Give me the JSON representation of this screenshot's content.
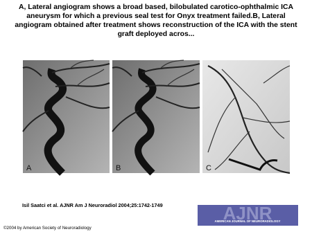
{
  "header": {
    "title": "A, Lateral angiogram shows a broad based, bilobulated carotico-ophthalmic ICA aneurysm for which a previous seal test for Onyx treatment failed.B, Lateral angiogram obtained after treatment shows reconstruction of the ICA with the stent graft deployed acros..."
  },
  "figure": {
    "panels": [
      {
        "label": "A"
      },
      {
        "label": "B"
      },
      {
        "label": "C"
      }
    ]
  },
  "footer": {
    "citation": "Isil Saatci et al. AJNR Am J Neuroradiol 2004;25:1742-1749",
    "logo": {
      "text": "AJNR",
      "subtitle": "AMERICAN JOURNAL OF NEURORADIOLOGY"
    },
    "copyright": "©2004 by American Society of Neuroradiology"
  }
}
